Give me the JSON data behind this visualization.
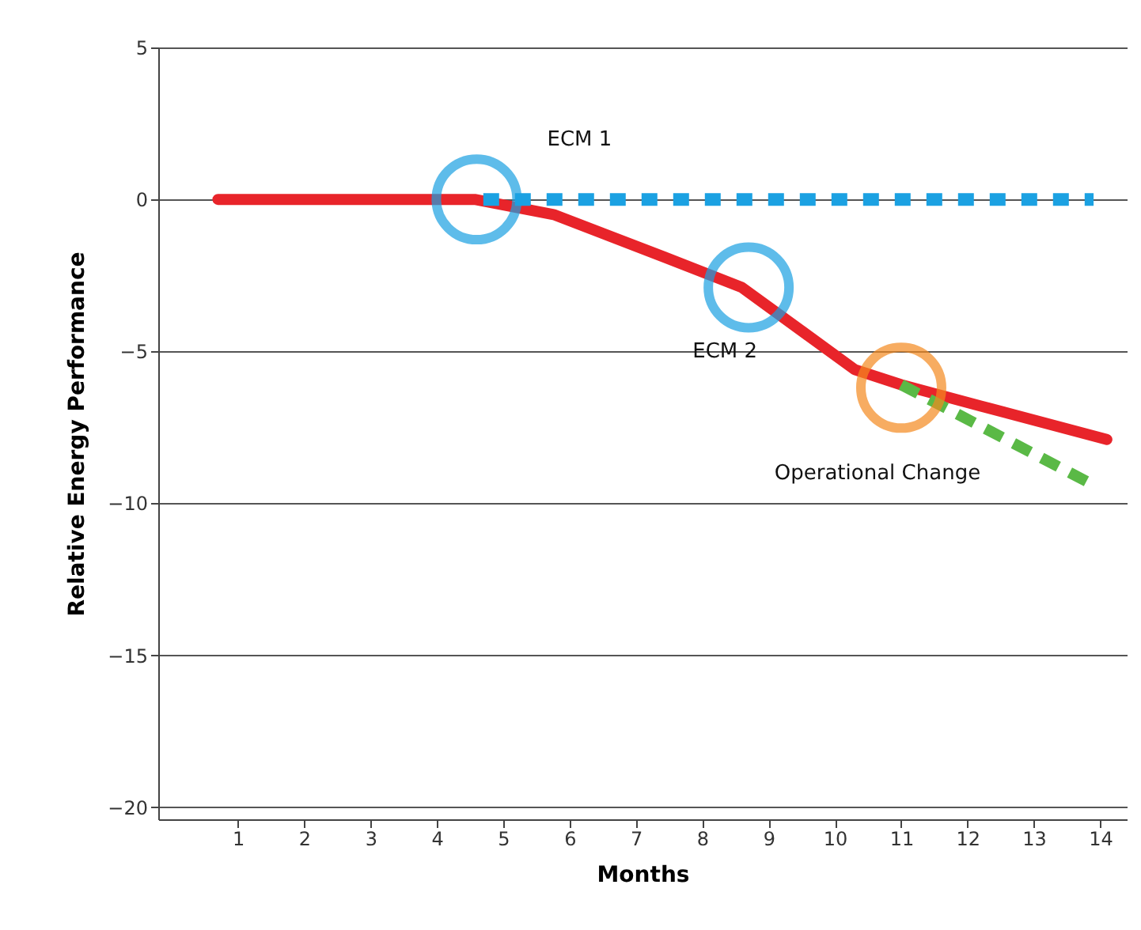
{
  "chart_data": {
    "type": "line",
    "xlabel": "Months",
    "ylabel": "Relative Energy Performance",
    "xlim": [
      -0.2,
      14.4
    ],
    "xticks": [
      1,
      2,
      3,
      4,
      5,
      6,
      7,
      8,
      9,
      10,
      11,
      12,
      13,
      14
    ],
    "ylim": [
      -20.4,
      5
    ],
    "yticks": [
      5,
      0,
      -5,
      -10,
      -15,
      -20
    ],
    "grid": "y",
    "series": [
      {
        "color": "#e8242a",
        "line_style": "solid",
        "x": [
          0.7,
          4.57,
          5.76,
          7.43,
          8.6,
          10.3,
          11.0,
          12.2,
          14.1
        ],
        "values": [
          0,
          0,
          -0.5,
          -1.9,
          -2.9,
          -5.6,
          -6.1,
          -6.8,
          -7.9
        ]
      },
      {
        "color": "#1ba1e2",
        "line_style": "dotted",
        "x": [
          4.7,
          13.9
        ],
        "values": [
          0,
          0
        ]
      },
      {
        "color": "#5ab946",
        "line_style": "dashed",
        "x": [
          11.0,
          13.9
        ],
        "values": [
          -6.1,
          -9.4
        ]
      },
      {
        "type": "scatter",
        "marker": "circle",
        "colors": [
          "#1ba1e2",
          "#1ba1e2",
          "#f58a1f"
        ],
        "x": [
          4.6,
          8.7,
          11.0
        ],
        "values": [
          0,
          -2.9,
          -6.2
        ]
      }
    ],
    "annotations": [
      "ECM 1",
      "ECM 2",
      "Operational Change"
    ]
  }
}
